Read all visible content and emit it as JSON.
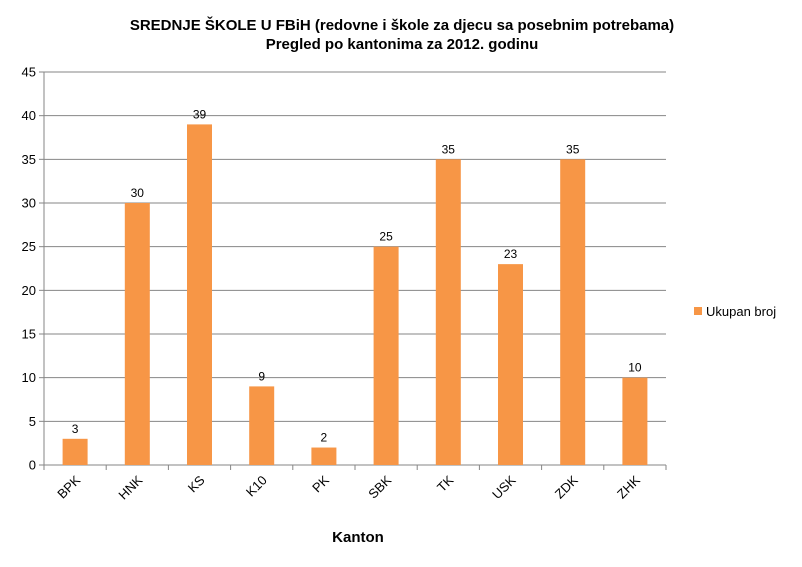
{
  "chart_data": {
    "type": "bar",
    "title": "SREDNJE ŠKOLE U FBiH (redovne i škole za djecu sa posebnim  potrebama)",
    "subtitle": "Pregled po kantonima  za 2012. godinu",
    "xlabel": "Kanton",
    "ylabel": "",
    "ylim": [
      0,
      45
    ],
    "yticks": [
      0,
      5,
      10,
      15,
      20,
      25,
      30,
      35,
      40,
      45
    ],
    "grid": true,
    "legend_position": "right",
    "categories": [
      "BPK",
      "HNK",
      "KS",
      "K10",
      "PK",
      "SBK",
      "TK",
      "USK",
      "ZDK",
      "ZHK"
    ],
    "series": [
      {
        "name": "Ukupan broj",
        "color": "#F79646",
        "values": [
          3,
          30,
          39,
          9,
          2,
          25,
          35,
          23,
          35,
          10
        ]
      }
    ]
  }
}
